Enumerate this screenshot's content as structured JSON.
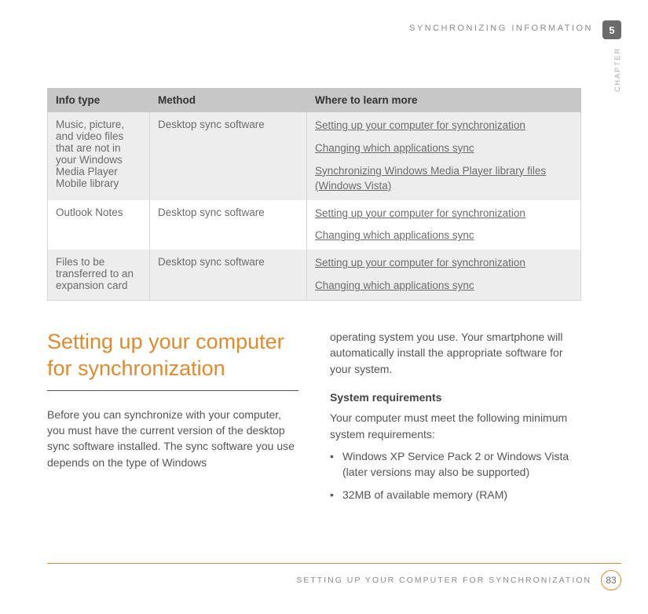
{
  "header": {
    "running_head": "SYNCHRONIZING INFORMATION",
    "chapter_number": "5",
    "vertical_label": "CHAPTER"
  },
  "table": {
    "headers": {
      "info": "Info type",
      "method": "Method",
      "where": "Where to learn more"
    },
    "rows": [
      {
        "info": "Music, picture, and video files that are not in your Windows Media Player Mobile library",
        "method": "Desktop sync software",
        "alt": true,
        "links": [
          {
            "text": "Setting up your computer for synchronization"
          },
          {
            "text": "Changing which applications sync"
          },
          {
            "text": "Synchronizing Windows Media Player library files",
            "suffix": " (Windows Vista)"
          }
        ]
      },
      {
        "info": "Outlook Notes",
        "method": "Desktop sync software",
        "alt": false,
        "links": [
          {
            "text": "Setting up your computer for synchronization"
          },
          {
            "text": "Changing which applications sync"
          }
        ]
      },
      {
        "info": "Files to be transferred to an expansion card",
        "method": "Desktop sync software",
        "alt": true,
        "links": [
          {
            "text": "Setting up your computer for synchronization"
          },
          {
            "text": "Changing which applications sync"
          }
        ]
      }
    ]
  },
  "body": {
    "section_title": "Setting up your computer for synchronization",
    "left_para": "Before you can synchronize with your computer, you must have the current version of the desktop sync software installed. The sync software you use depends on the type of Windows",
    "right_para1": "operating system you use. Your smartphone will automatically install the appropriate software for your system.",
    "subhead": "System requirements",
    "right_para2": "Your computer must meet the following minimum system requirements:",
    "bullets": [
      "Windows XP Service Pack 2 or Windows Vista (later versions may also be supported)",
      "32MB of available memory (RAM)"
    ]
  },
  "footer": {
    "text": "SETTING UP YOUR COMPUTER FOR SYNCHRONIZATION",
    "page": "83"
  }
}
